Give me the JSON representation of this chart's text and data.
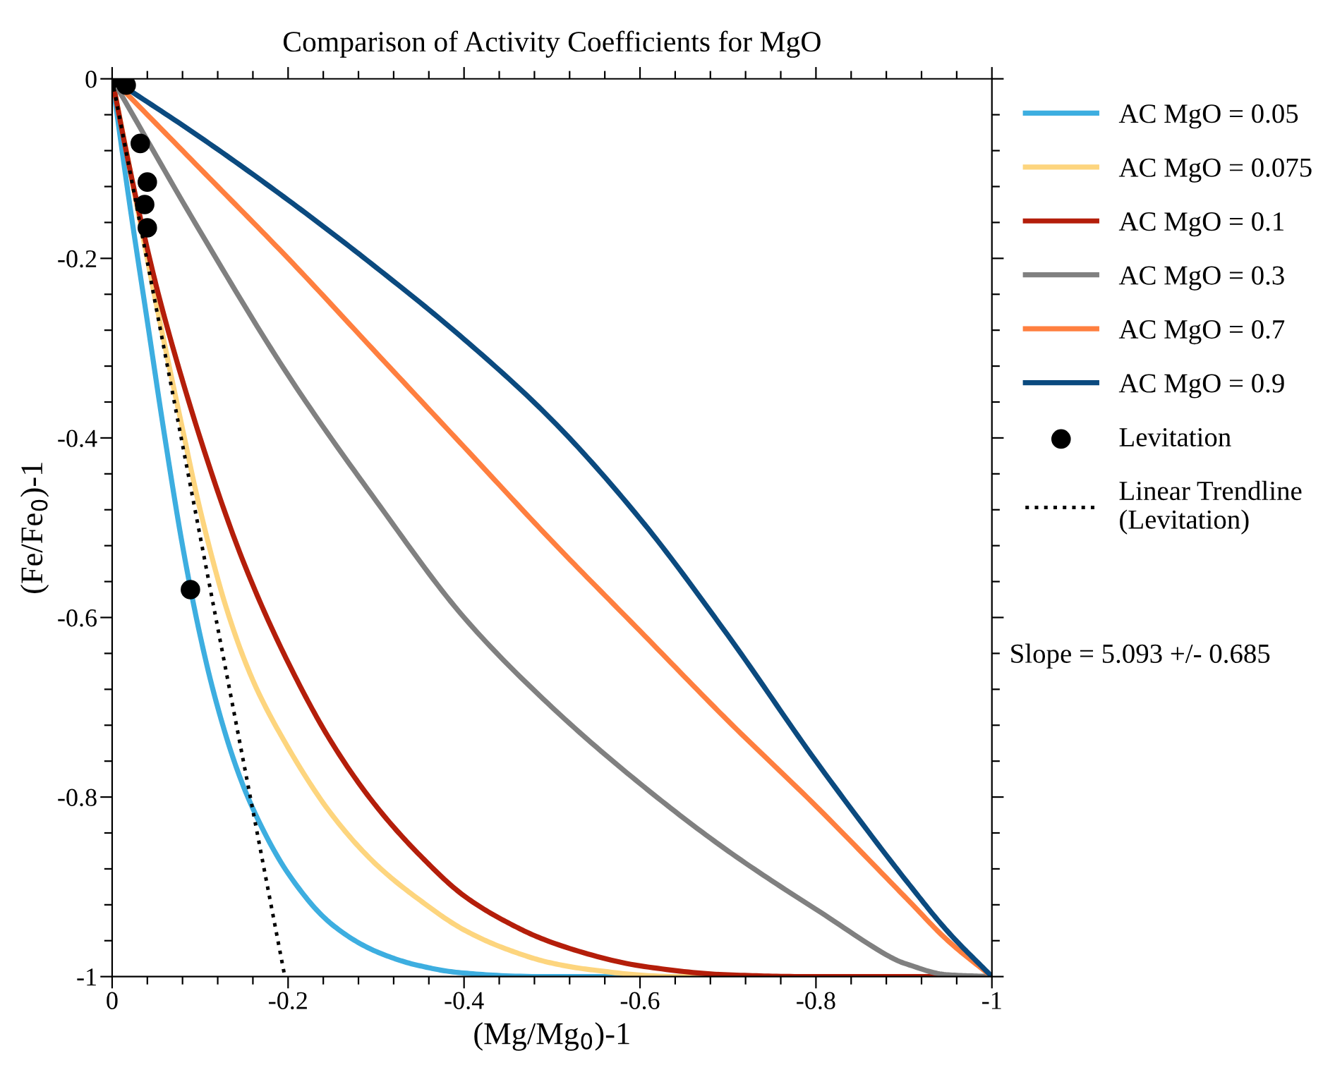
{
  "chart_data": {
    "type": "line",
    "title": "Comparison of Activity Coefficients for MgO",
    "xlabel": "(Mg/Mg$_{0}$)-1",
    "ylabel": "(Fe/Fe$_{0}$)-1",
    "xlim": [
      0,
      -1
    ],
    "ylim": [
      -1,
      0
    ],
    "xticks": [
      0,
      {
        "value": -0.04,
        "label": null
      },
      {
        "value": -0.08,
        "label": null
      },
      {
        "value": -0.12,
        "label": null
      },
      {
        "value": -0.16,
        "label": null
      },
      {
        "value": -0.2,
        "label": "-0.2"
      },
      {
        "value": -0.24,
        "label": null
      },
      {
        "value": -0.28,
        "label": null
      },
      {
        "value": -0.32,
        "label": null
      },
      {
        "value": -0.36,
        "label": null
      },
      {
        "value": -0.4,
        "label": "-0.4"
      },
      {
        "value": -0.44,
        "label": null
      },
      {
        "value": -0.48,
        "label": null
      },
      {
        "value": -0.52,
        "label": null
      },
      {
        "value": -0.56,
        "label": null
      },
      {
        "value": -0.6,
        "label": "-0.6"
      },
      {
        "value": -0.64,
        "label": null
      },
      {
        "value": -0.68,
        "label": null
      },
      {
        "value": -0.72,
        "label": null
      },
      {
        "value": -0.76,
        "label": null
      },
      {
        "value": -0.8,
        "label": "-0.8"
      },
      {
        "value": -0.84,
        "label": null
      },
      {
        "value": -0.88,
        "label": null
      },
      {
        "value": -0.92,
        "label": null
      },
      {
        "value": -0.96,
        "label": null
      },
      {
        "value": -1,
        "label": "-1"
      }
    ],
    "yticks": [
      0,
      {
        "value": -0.04,
        "label": null
      },
      {
        "value": -0.08,
        "label": null
      },
      {
        "value": -0.12,
        "label": null
      },
      {
        "value": -0.16,
        "label": null
      },
      {
        "value": -0.2,
        "label": "-0.2"
      },
      {
        "value": -0.24,
        "label": null
      },
      {
        "value": -0.28,
        "label": null
      },
      {
        "value": -0.32,
        "label": null
      },
      {
        "value": -0.36,
        "label": null
      },
      {
        "value": -0.4,
        "label": "-0.4"
      },
      {
        "value": -0.44,
        "label": null
      },
      {
        "value": -0.48,
        "label": null
      },
      {
        "value": -0.52,
        "label": null
      },
      {
        "value": -0.56,
        "label": null
      },
      {
        "value": -0.6,
        "label": "-0.6"
      },
      {
        "value": -0.64,
        "label": null
      },
      {
        "value": -0.68,
        "label": null
      },
      {
        "value": -0.72,
        "label": null
      },
      {
        "value": -0.76,
        "label": null
      },
      {
        "value": -0.8,
        "label": "-0.8"
      },
      {
        "value": -0.84,
        "label": null
      },
      {
        "value": -0.88,
        "label": null
      },
      {
        "value": -0.92,
        "label": null
      },
      {
        "value": -0.96,
        "label": null
      },
      {
        "value": -1,
        "label": "-1"
      }
    ],
    "grid": false,
    "legend": "right",
    "series": [
      {
        "name": "AC MgO = 0.05",
        "color": "#3daee0",
        "x": [
          0,
          -0.02,
          -0.04,
          -0.06,
          -0.08,
          -0.1,
          -0.12,
          -0.15,
          -0.2,
          -0.25,
          -0.3,
          -0.35,
          -0.4,
          -0.5,
          -1
        ],
        "values": [
          0,
          -0.14,
          -0.27,
          -0.4,
          -0.52,
          -0.62,
          -0.7,
          -0.79,
          -0.885,
          -0.942,
          -0.972,
          -0.988,
          -0.996,
          -1,
          -1
        ]
      },
      {
        "name": "AC MgO = 0.075",
        "color": "#fdd57e",
        "x": [
          0,
          -0.02,
          -0.05,
          -0.08,
          -0.1,
          -0.13,
          -0.16,
          -0.2,
          -0.25,
          -0.3,
          -0.35,
          -0.4,
          -0.45,
          -0.5,
          -0.55,
          -0.65,
          -1
        ],
        "values": [
          0,
          -0.1,
          -0.25,
          -0.39,
          -0.48,
          -0.59,
          -0.67,
          -0.745,
          -0.82,
          -0.875,
          -0.915,
          -0.948,
          -0.97,
          -0.985,
          -0.993,
          -1,
          -1
        ]
      },
      {
        "name": "AC MgO = 0.1",
        "color": "#b41e0a",
        "x": [
          0,
          -0.02,
          -0.05,
          -0.1,
          -0.15,
          -0.2,
          -0.25,
          -0.3,
          -0.35,
          -0.4,
          -0.45,
          -0.5,
          -0.6,
          -0.7,
          -0.8,
          -1
        ],
        "values": [
          0,
          -0.1,
          -0.23,
          -0.4,
          -0.54,
          -0.65,
          -0.74,
          -0.81,
          -0.865,
          -0.91,
          -0.94,
          -0.962,
          -0.988,
          -0.998,
          -1,
          -1
        ]
      },
      {
        "name": "AC MgO = 0.3",
        "color": "#808080",
        "x": [
          0,
          -0.1,
          -0.2,
          -0.3,
          -0.4,
          -0.5,
          -0.6,
          -0.7,
          -0.8,
          -0.9,
          -0.95,
          -1
        ],
        "values": [
          0,
          -0.17,
          -0.33,
          -0.47,
          -0.6,
          -0.7,
          -0.785,
          -0.86,
          -0.925,
          -0.985,
          -0.998,
          -1
        ]
      },
      {
        "name": "AC MgO = 0.7",
        "color": "#ff7f3f",
        "x": [
          0,
          -0.1,
          -0.2,
          -0.3,
          -0.4,
          -0.5,
          -0.6,
          -0.7,
          -0.8,
          -0.9,
          -0.95,
          -1
        ],
        "values": [
          0,
          -0.1,
          -0.2,
          -0.305,
          -0.41,
          -0.515,
          -0.615,
          -0.715,
          -0.81,
          -0.91,
          -0.96,
          -1
        ]
      },
      {
        "name": "AC MgO = 0.9",
        "color": "#0b4a7f",
        "x": [
          0,
          -0.1,
          -0.2,
          -0.3,
          -0.4,
          -0.5,
          -0.6,
          -0.7,
          -0.8,
          -0.9,
          -0.95,
          -1
        ],
        "values": [
          0,
          -0.065,
          -0.135,
          -0.21,
          -0.29,
          -0.38,
          -0.49,
          -0.62,
          -0.76,
          -0.89,
          -0.95,
          -1
        ]
      },
      {
        "name": "Levitation",
        "type": "scatter",
        "marker": "circle",
        "color": "#000000",
        "x": [
          0,
          -0.016,
          -0.032,
          -0.04,
          -0.037,
          -0.04,
          -0.089
        ],
        "values": [
          0,
          -0.007,
          -0.072,
          -0.115,
          -0.14,
          -0.166,
          -0.569
        ]
      },
      {
        "name": "Linear Trendline\n(Levitation)",
        "line_style": "dotted",
        "color": "#000000",
        "x": [
          0,
          -0.1963
        ],
        "values": [
          0,
          -1
        ]
      }
    ],
    "annotations": [
      "Slope = 5.093 +/- 0.685"
    ]
  }
}
